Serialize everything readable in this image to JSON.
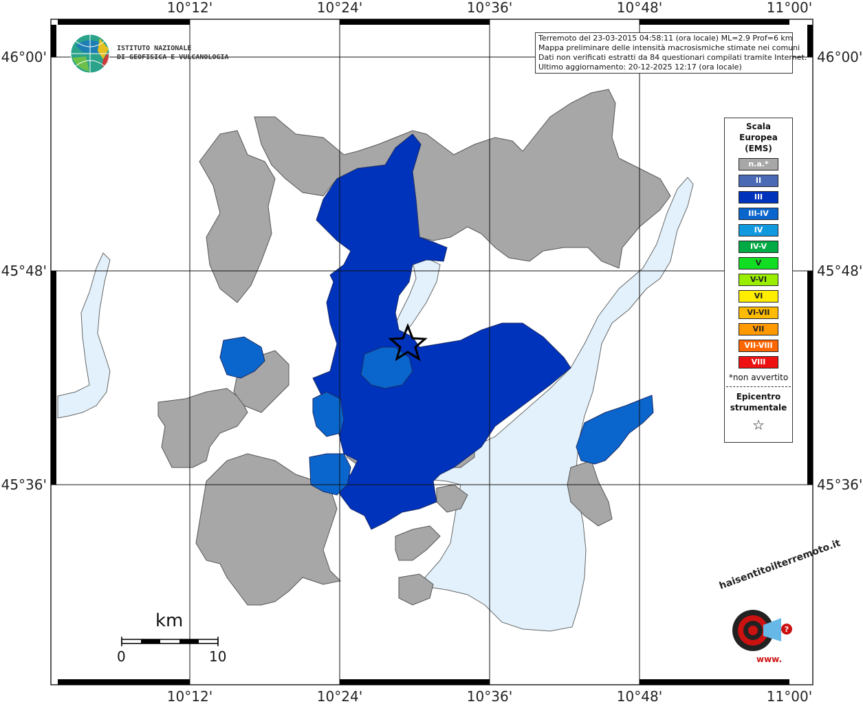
{
  "map": {
    "top_lon_labels": [
      "10°12'",
      "10°24'",
      "10°36'",
      "10°48'",
      "11°00'"
    ],
    "bottom_lon_labels": [
      "10°12'",
      "10°24'",
      "10°36'",
      "10°48'",
      "11°00'"
    ],
    "left_lat_labels": [
      "46°00'",
      "45°48'",
      "45°36'"
    ],
    "right_lat_labels": [
      "46°00'",
      "45°48'",
      "45°36'"
    ],
    "colors": {
      "lake": "#e2f1fb",
      "na": "#a7a7a7",
      "III": "#0033bb",
      "III-IV": "#0a66cc",
      "border": "#555555"
    }
  },
  "info": {
    "line1": "Terremoto del 23-03-2015 04:58:11 (ora locale) ML=2.9 Prof=6 km",
    "line2": "Mappa preliminare delle intensità macrosismiche stimate nei comuni",
    "line3": "Dati non verificati estratti da 84 questionari compilati tramite Internet.",
    "line4": "Ultimo aggiornamento: 20-12-2025 12:17 (ora locale)"
  },
  "legend": {
    "title1": "Scala",
    "title2": "Europea",
    "title3": "(EMS)",
    "items": [
      {
        "label": "n.a.*",
        "color": "#a7a7a7"
      },
      {
        "label": "II",
        "color": "#4a6ab5"
      },
      {
        "label": "III",
        "color": "#0033bb"
      },
      {
        "label": "III-IV",
        "color": "#0a66cc"
      },
      {
        "label": "IV",
        "color": "#1199e0"
      },
      {
        "label": "IV-V",
        "color": "#00aa44"
      },
      {
        "label": "V",
        "color": "#11dd22"
      },
      {
        "label": "V-VI",
        "color": "#99ee00"
      },
      {
        "label": "VI",
        "color": "#ffee00"
      },
      {
        "label": "VI-VII",
        "color": "#ffbb00"
      },
      {
        "label": "VII",
        "color": "#ff9900"
      },
      {
        "label": "VII-VIII",
        "color": "#ff6600"
      },
      {
        "label": "VIII",
        "color": "#ee1111"
      }
    ],
    "note": "*non avvertito",
    "epi1": "Epicentro",
    "epi2": "strumentale",
    "star": "☆"
  },
  "logo": {
    "line1": "ISTITUTO NAZIONALE",
    "line2": "DI GEOFISICA E VULCANOLOGIA"
  },
  "scale_bar": {
    "unit": "km",
    "start": "0",
    "end": "10"
  },
  "hs_logo": {
    "text": "haisentitoilterremoto.it",
    "www": "www."
  }
}
